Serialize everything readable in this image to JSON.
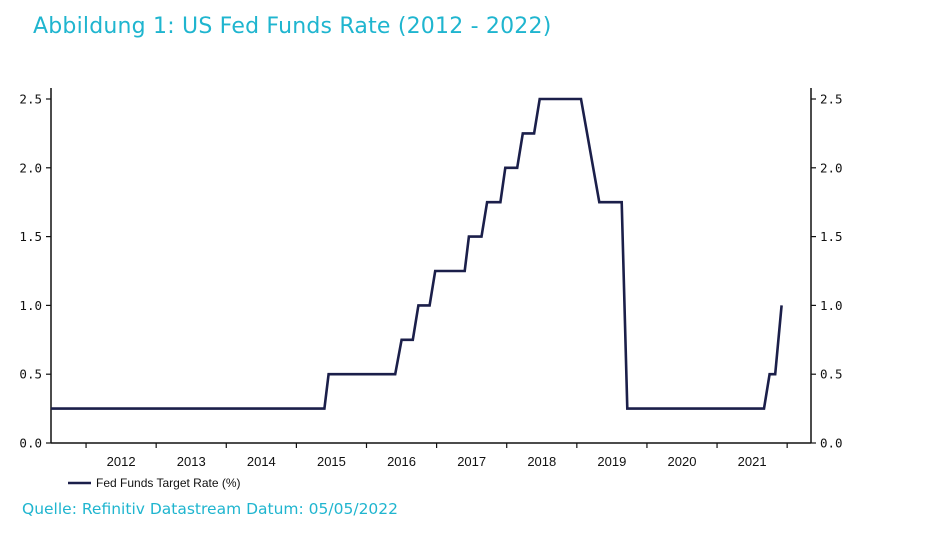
{
  "title": "Abbildung 1: US Fed Funds Rate (2012 - 2022)",
  "source": "Quelle: Refinitiv Datastream Datum: 05/05/2022",
  "colors": {
    "accent": "#1fb5cf",
    "line": "#1b1f4a",
    "axis": "#111111"
  },
  "chart_data": {
    "type": "line",
    "title": "Abbildung 1: US Fed Funds Rate (2012 - 2022)",
    "xlabel": "",
    "ylabel": "",
    "xlim": [
      2011.5,
      2022.34
    ],
    "ylim": [
      0,
      2.55
    ],
    "yticks": [
      "0.0",
      "0.5",
      "1.0",
      "1.5",
      "2.0",
      "2.5"
    ],
    "xticks": [
      "2012",
      "2013",
      "2014",
      "2015",
      "2016",
      "2017",
      "2018",
      "2019",
      "2020",
      "2021"
    ],
    "grid": false,
    "legend": "bottom-left",
    "series": [
      {
        "name": "Fed Funds Target Rate (%)",
        "color": "#1b1f4a",
        "points": [
          [
            2011.5,
            0.25
          ],
          [
            2015.4,
            0.25
          ],
          [
            2015.46,
            0.5
          ],
          [
            2016.41,
            0.5
          ],
          [
            2016.5,
            0.75
          ],
          [
            2016.66,
            0.75
          ],
          [
            2016.74,
            1.0
          ],
          [
            2016.9,
            1.0
          ],
          [
            2016.98,
            1.25
          ],
          [
            2017.4,
            1.25
          ],
          [
            2017.46,
            1.5
          ],
          [
            2017.64,
            1.5
          ],
          [
            2017.72,
            1.75
          ],
          [
            2017.91,
            1.75
          ],
          [
            2017.98,
            2.0
          ],
          [
            2018.15,
            2.0
          ],
          [
            2018.23,
            2.25
          ],
          [
            2018.39,
            2.25
          ],
          [
            2018.47,
            2.5
          ],
          [
            2019.06,
            2.5
          ],
          [
            2019.32,
            1.75
          ],
          [
            2019.64,
            1.75
          ],
          [
            2019.72,
            0.25
          ],
          [
            2021.67,
            0.25
          ],
          [
            2021.75,
            0.5
          ],
          [
            2021.83,
            0.5
          ],
          [
            2021.92,
            1.0
          ]
        ]
      }
    ]
  }
}
